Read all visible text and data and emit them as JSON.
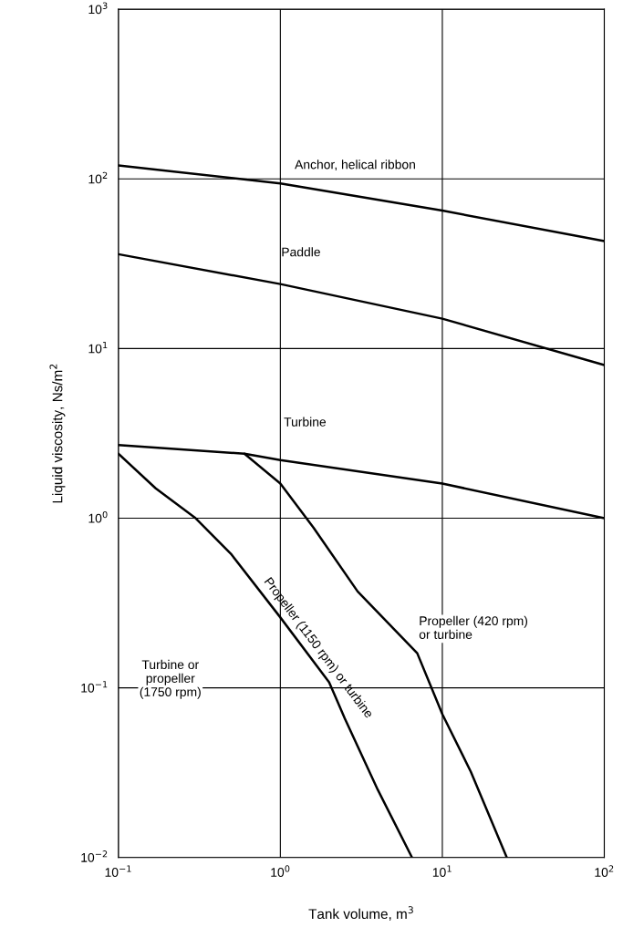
{
  "chart_data": {
    "type": "line",
    "xlabel": "Tank volume, m$^{3}$",
    "ylabel": "Liquid viscosity, Ns/m$^{2}$",
    "log": "xy",
    "grid": true,
    "marker": "none",
    "line_style": "solid",
    "xlim": [
      0.1,
      100
    ],
    "ylim": [
      0.01,
      1000
    ],
    "xticks": [
      {
        "value": 0.1,
        "label": "10$^{−1}$"
      },
      {
        "value": 1,
        "label": "10$^{0}$"
      },
      {
        "value": 10,
        "label": "10$^{1}$"
      },
      {
        "value": 100,
        "label": "10$^{2}$"
      }
    ],
    "yticks": [
      {
        "value": 0.01,
        "label": "10$^{−2}$"
      },
      {
        "value": 0.1,
        "label": "10$^{−1}$"
      },
      {
        "value": 1,
        "label": "10$^{0}$"
      },
      {
        "value": 10,
        "label": "10$^{1}$"
      },
      {
        "value": 100,
        "label": "10$^{2}$"
      },
      {
        "value": 1000,
        "label": "10$^{3}$"
      }
    ],
    "series": [
      {
        "color": "#000000",
        "x": [
          0.1,
          1,
          10,
          100
        ],
        "values": [
          120,
          94,
          65,
          43
        ]
      },
      {
        "color": "#000000",
        "x": [
          0.1,
          1,
          10,
          100
        ],
        "values": [
          36,
          24,
          15,
          8
        ]
      },
      {
        "color": "#000000",
        "x": [
          0.1,
          0.6,
          1,
          10,
          100
        ],
        "values": [
          2.7,
          2.4,
          2.2,
          1.6,
          1.0
        ]
      },
      {
        "color": "#000000",
        "x": [
          0.1,
          0.17,
          0.3,
          0.5,
          1,
          2,
          2.5,
          4,
          6.5
        ],
        "values": [
          2.4,
          1.5,
          1.0,
          0.61,
          0.26,
          0.108,
          0.066,
          0.025,
          0.01
        ]
      },
      {
        "color": "#000000",
        "x": [
          0.6,
          1,
          1.6,
          3,
          7,
          10,
          15,
          25
        ],
        "values": [
          2.4,
          1.6,
          0.88,
          0.37,
          0.16,
          0.07,
          0.032,
          0.01
        ]
      }
    ],
    "annotations": [
      {
        "text": "Anchor, helical ribbon",
        "x": 2.9,
        "y": 79.3
      },
      {
        "text": "Paddle",
        "x": 1.34,
        "y": 22.6
      },
      {
        "text": "Turbine",
        "x": 1.42,
        "y": 2.1
      },
      {
        "text": "Propeller (1150 rpm) or turbine",
        "x": 1.5,
        "y": 0.156
      },
      {
        "text": "Propeller (420 rpm)\nor turbine",
        "x": 5,
        "y": 0.223
      },
      "Turbine or\npropeller\n(1750 rpm)"
    ]
  }
}
